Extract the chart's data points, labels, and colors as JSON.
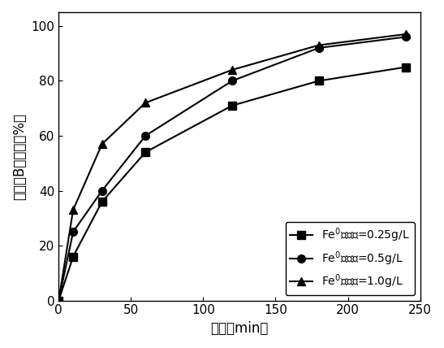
{
  "series": [
    {
      "label": "Fe$^0$投加量=0.25g/L",
      "x": [
        0,
        10,
        30,
        60,
        120,
        180,
        240
      ],
      "y": [
        0,
        16,
        36,
        54,
        71,
        80,
        85
      ],
      "marker": "s",
      "linestyle": "-",
      "color": "#000000"
    },
    {
      "label": "Fe$^0$投加量=0.5g/L",
      "x": [
        0,
        10,
        30,
        60,
        120,
        180,
        240
      ],
      "y": [
        0,
        25,
        40,
        60,
        80,
        92,
        96
      ],
      "marker": "o",
      "linestyle": "-",
      "color": "#000000"
    },
    {
      "label": "Fe$^0$投加量=1.0g/L",
      "x": [
        0,
        10,
        30,
        60,
        120,
        180,
        240
      ],
      "y": [
        0,
        33,
        57,
        72,
        84,
        93,
        97
      ],
      "marker": "^",
      "linestyle": "-",
      "color": "#000000"
    }
  ],
  "xlabel": "时间（min）",
  "ylabel": "岘弁明B降解率（%）",
  "xlim": [
    0,
    250
  ],
  "ylim": [
    0,
    105
  ],
  "xticks": [
    0,
    50,
    100,
    150,
    200,
    250
  ],
  "yticks": [
    0,
    20,
    40,
    60,
    80,
    100
  ],
  "legend_loc": "lower right",
  "marker_size": 7,
  "linewidth": 1.5,
  "background_color": "#ffffff"
}
